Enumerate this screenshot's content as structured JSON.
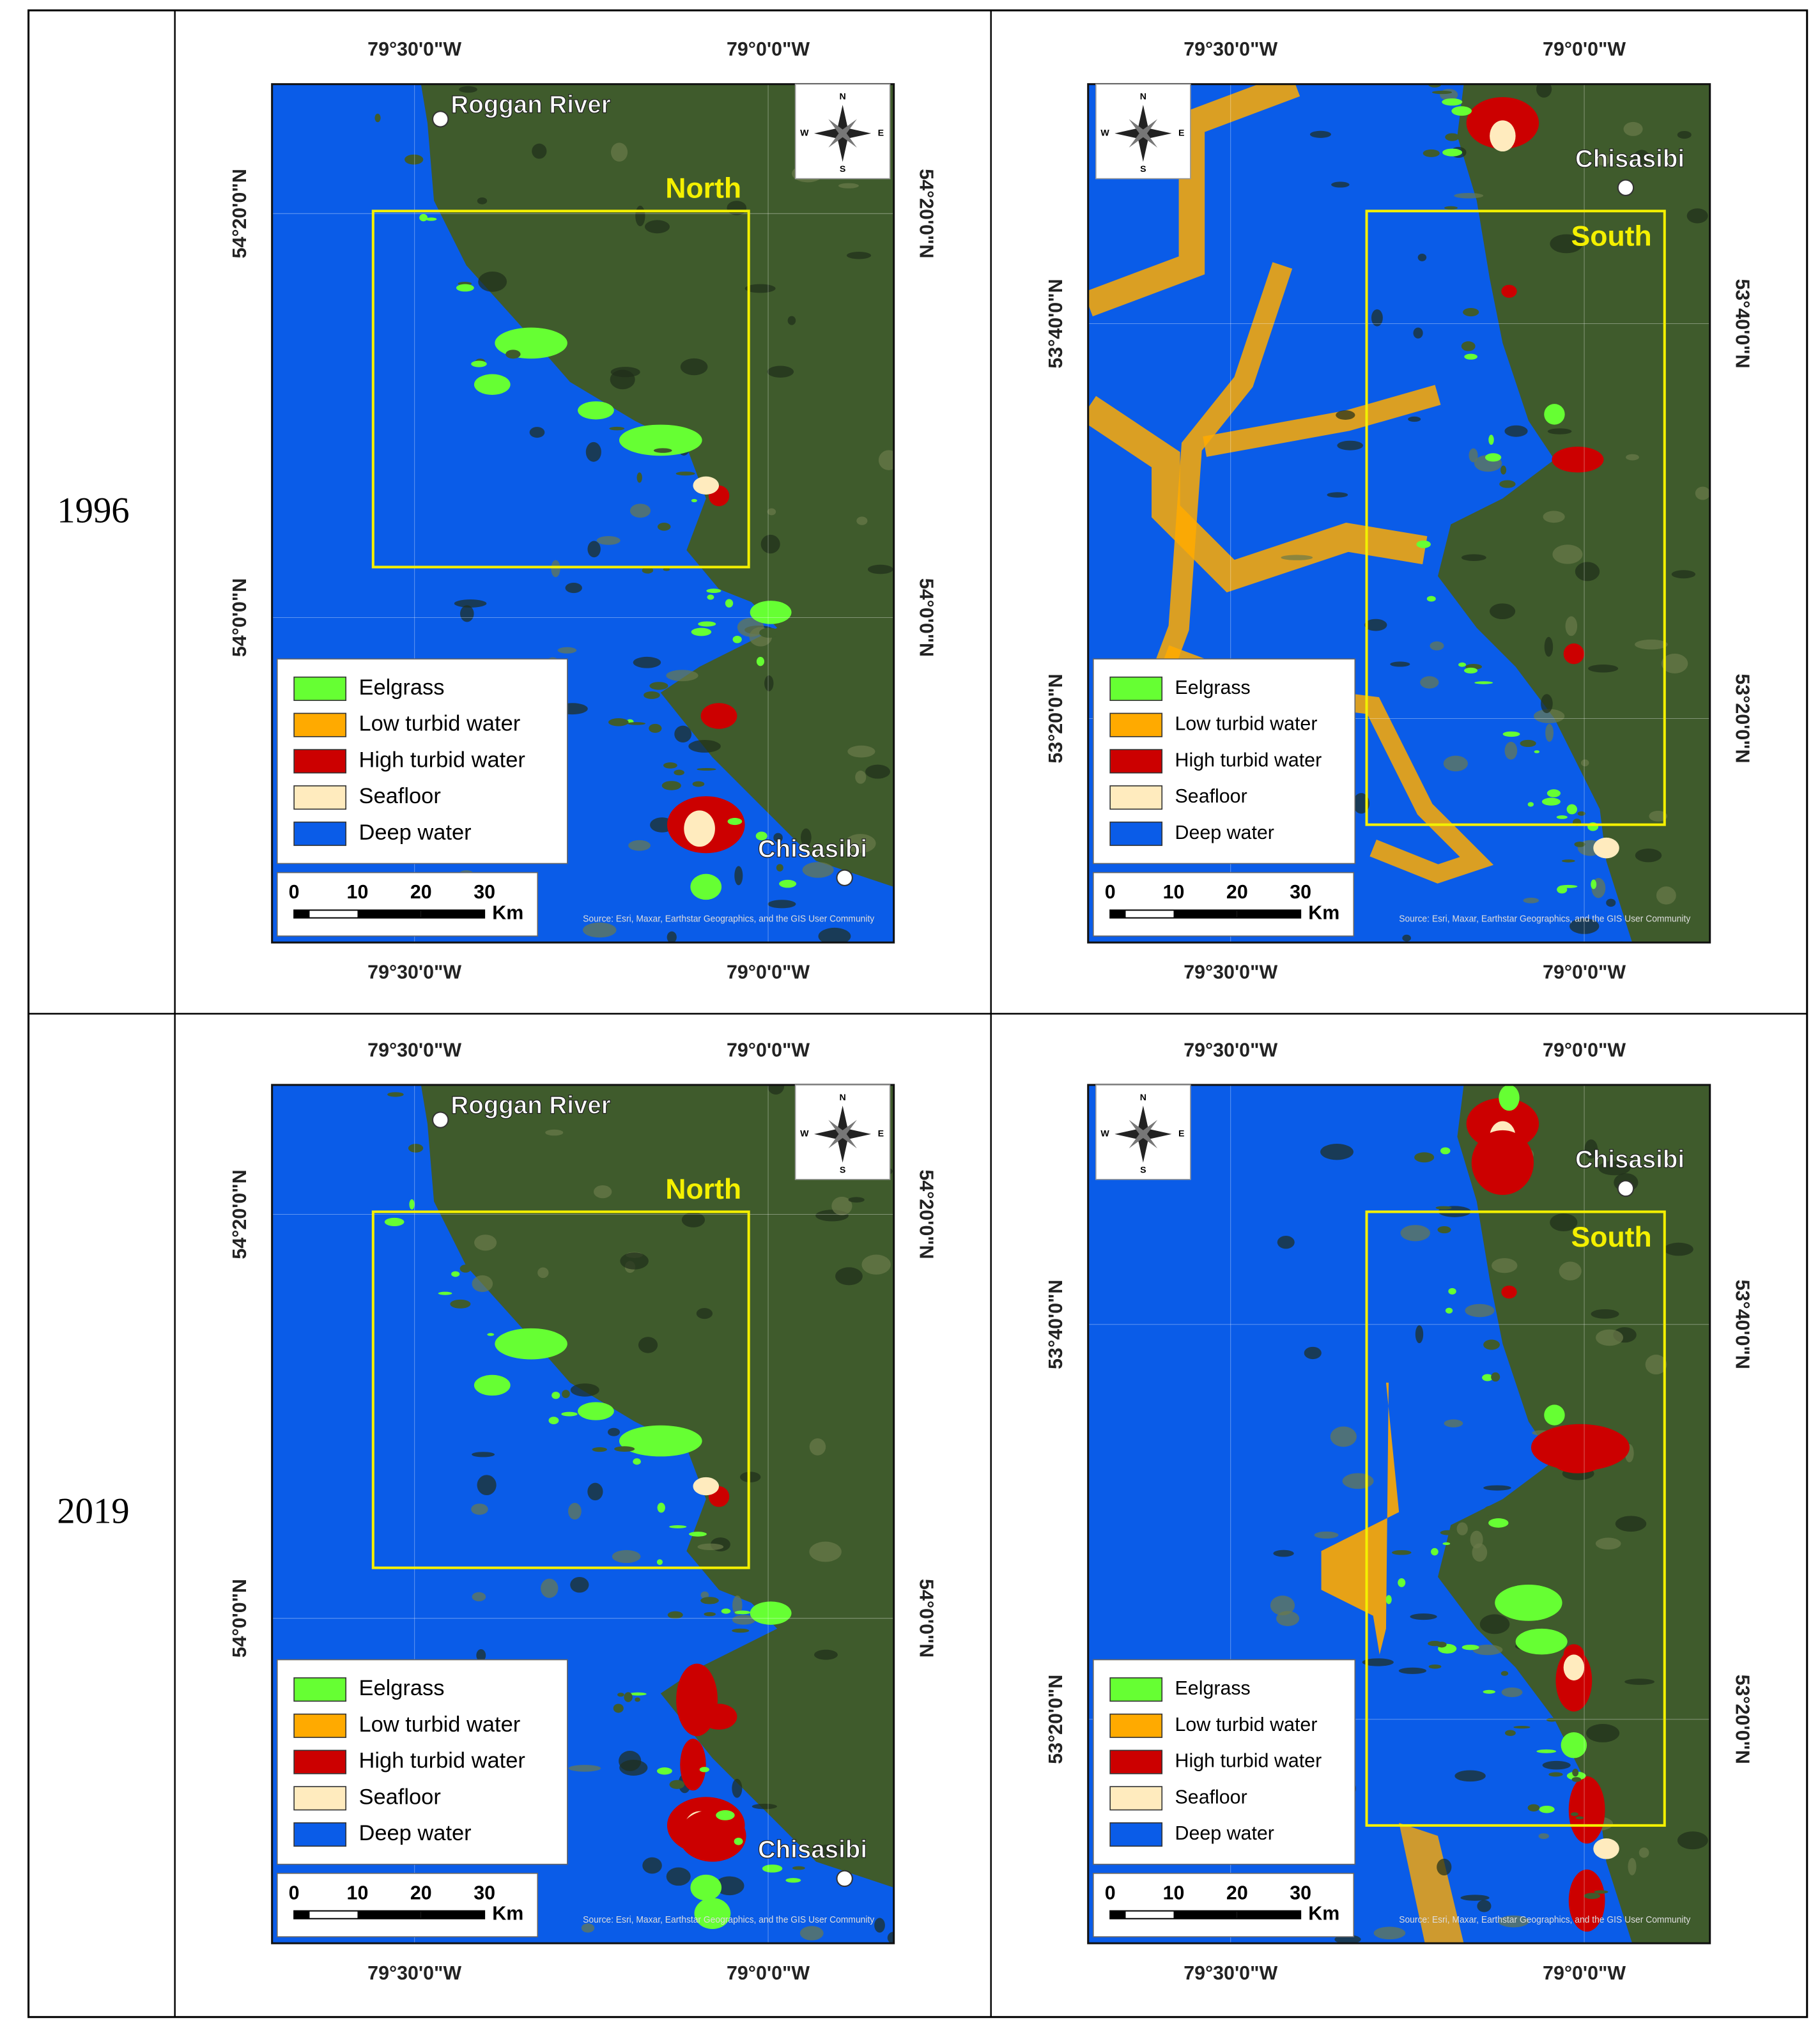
{
  "table": {
    "rows": [
      {
        "year": "1996"
      },
      {
        "year": "2019"
      }
    ]
  },
  "maps": {
    "lon_labels": [
      "79°30'0\"W",
      "79°0'0\"W"
    ],
    "north": {
      "box_label": "North",
      "places": [
        {
          "name": "Roggan River"
        },
        {
          "name": "Chisasibi"
        }
      ],
      "lat_labels": [
        "54°20'0\"N",
        "54°0'0\"N"
      ]
    },
    "south": {
      "box_label": "South",
      "places": [
        {
          "name": "Chisasibi"
        }
      ],
      "lat_labels": [
        "53°40'0\"N",
        "53°20'0\"N"
      ]
    }
  },
  "legend": [
    {
      "label": "Eelgrass",
      "color": "#66ff33"
    },
    {
      "label": "Low turbid water",
      "color": "#ffaa00"
    },
    {
      "label": "High turbid water",
      "color": "#cc0000"
    },
    {
      "label": "Seafloor",
      "color": "#ffebbe"
    },
    {
      "label": "Deep water",
      "color": "#0a5ce8"
    }
  ],
  "scale_bar": {
    "ticks": [
      "0",
      "10",
      "20",
      "30"
    ],
    "unit": "Km"
  },
  "compass": {
    "n": "N",
    "w": "W",
    "e": "E",
    "s": "S"
  },
  "source": "Source: Esri, Maxar, Earthstar Geographics, and the GIS User Community"
}
